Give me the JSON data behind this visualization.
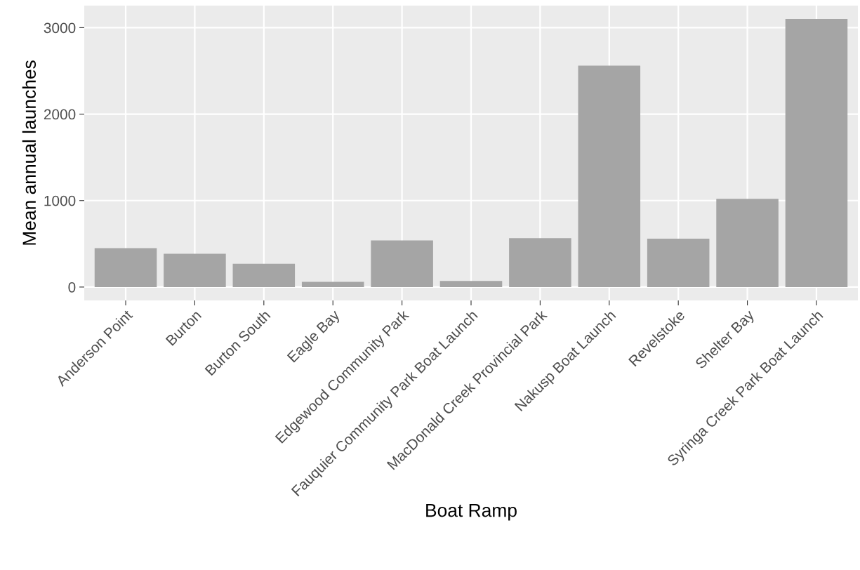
{
  "chart_data": {
    "type": "bar",
    "xlabel": "Boat Ramp",
    "ylabel": "Mean annual launches",
    "categories": [
      "Anderson Point",
      "Burton",
      "Burton South",
      "Eagle Bay",
      "Edgewood Community Park",
      "Fauquier Community Park Boat Launch",
      "MacDonald Creek Provincial Park",
      "Nakusp Boat Launch",
      "Revelstoke",
      "Shelter Bay",
      "Syringa Creek Park Boat Launch"
    ],
    "values": [
      450,
      385,
      270,
      60,
      540,
      70,
      565,
      2560,
      560,
      1020,
      3100
    ],
    "color": "#a5a5a5",
    "ylim": [
      -155,
      3255
    ],
    "yticks": [
      0,
      1000,
      2000,
      3000
    ],
    "grid": true,
    "legend": false
  }
}
